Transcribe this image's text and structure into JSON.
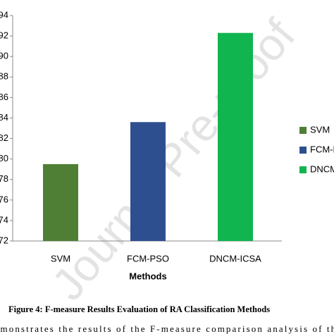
{
  "chart_data": {
    "type": "bar",
    "x_label": "Methods",
    "categories": [
      "SVM",
      "FCM-PSO",
      "DNCM-ICSA"
    ],
    "values": [
      79.5,
      83.6,
      92.3
    ],
    "colors": [
      "#4f7f35",
      "#2e4f8f",
      "#10b54f"
    ],
    "ylim": [
      72,
      94
    ],
    "yticks": [
      72,
      74,
      76,
      78,
      80,
      82,
      84,
      86,
      88,
      90,
      92,
      94
    ],
    "grid": false,
    "legend": "right"
  },
  "watermark": "Journal Pre-proof",
  "caption": "Figure 4: F-measure Results Evaluation of RA Classification Methods",
  "body_text": "demonstrates the results of the F-measure comparison analysis of the"
}
